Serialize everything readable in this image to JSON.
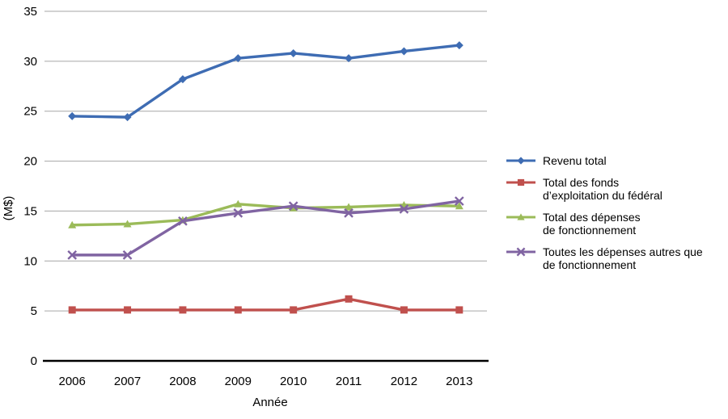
{
  "chart_data": {
    "type": "line",
    "title": "",
    "xlabel": "Année",
    "ylabel": "(M$)",
    "x_categories": [
      "2006",
      "2007",
      "2008",
      "2009",
      "2010",
      "2011",
      "2012",
      "2013"
    ],
    "y_ticks": [
      0,
      5,
      10,
      15,
      20,
      25,
      30,
      35
    ],
    "ylim": [
      0,
      35
    ],
    "grid": true,
    "legend_position": "right",
    "series": [
      {
        "name": "Revenu total",
        "name_lines": [
          "Revenu total"
        ],
        "color": "#3E6CB3",
        "marker": "diamond",
        "values": [
          24.5,
          24.4,
          28.2,
          30.3,
          30.8,
          30.3,
          31.0,
          31.6
        ]
      },
      {
        "name": "Total des fonds d’exploitation du fédéral",
        "name_lines": [
          "Total des fonds",
          "d’exploitation du fédéral"
        ],
        "color": "#C0504D",
        "marker": "square",
        "values": [
          5.1,
          5.1,
          5.1,
          5.1,
          5.1,
          6.2,
          5.1,
          5.1
        ]
      },
      {
        "name": "Total des dépenses de fonctionnement",
        "name_lines": [
          "Total des dépenses",
          "de fonctionnement"
        ],
        "color": "#9BBB59",
        "marker": "triangle",
        "values": [
          13.6,
          13.7,
          14.1,
          15.7,
          15.3,
          15.4,
          15.6,
          15.5
        ]
      },
      {
        "name": "Toutes les dépenses autres que de fonctionnement",
        "name_lines": [
          "Toutes les dépenses autres que",
          "de fonctionnement"
        ],
        "color": "#8064A2",
        "marker": "x",
        "values": [
          10.6,
          10.6,
          14.0,
          14.8,
          15.5,
          14.8,
          15.2,
          16.0
        ]
      }
    ],
    "colors": {
      "grid": "#A6A6A6",
      "axis": "#000000",
      "text": "#000000"
    }
  }
}
